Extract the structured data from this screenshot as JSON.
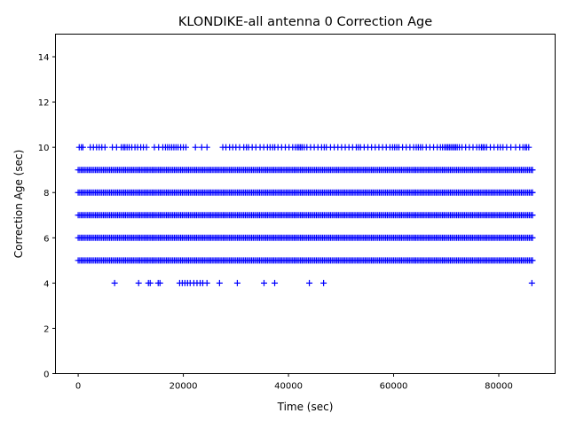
{
  "chart_data": {
    "type": "scatter",
    "title": "KLONDIKE-all antenna 0 Correction Age",
    "xlabel": "Time (sec)",
    "ylabel": "Correction Age (sec)",
    "xlim": [
      -4320,
      90720
    ],
    "ylim": [
      0,
      15
    ],
    "xticks": [
      0,
      20000,
      40000,
      60000,
      80000
    ],
    "xtick_labels": [
      "0",
      "20000",
      "40000",
      "60000",
      "80000"
    ],
    "yticks": [
      0,
      2,
      4,
      6,
      8,
      10,
      12,
      14
    ],
    "ytick_labels": [
      "0",
      "2",
      "4",
      "6",
      "8",
      "10",
      "12",
      "14"
    ],
    "grid": false,
    "marker": "+",
    "color": "#0000ff",
    "dense_bands": [
      {
        "y": 5,
        "x_range": [
          0,
          86400
        ]
      },
      {
        "y": 6,
        "x_range": [
          0,
          86400
        ]
      },
      {
        "y": 7,
        "x_range": [
          0,
          86400
        ]
      },
      {
        "y": 8,
        "x_range": [
          0,
          86400
        ]
      },
      {
        "y": 9,
        "x_range": [
          0,
          86400
        ]
      }
    ],
    "sparse_points": [
      {
        "y": 4,
        "x": [
          6934,
          11500,
          13360,
          13700,
          15220,
          15560,
          19300,
          19800,
          20300,
          20800,
          21300,
          22000,
          22600,
          23200,
          23700,
          24500,
          26890,
          30270,
          35350,
          37380,
          43970,
          46680,
          86300
        ]
      },
      {
        "y": 10,
        "x": [
          200,
          600,
          900,
          2300,
          2900,
          3500,
          4000,
          4500,
          5100,
          6500,
          7300,
          8200,
          8600,
          8900,
          9300,
          9700,
          10200,
          10800,
          11300,
          11900,
          12400,
          13000,
          14500,
          15300,
          16100,
          16600,
          17000,
          17400,
          17800,
          18200,
          18600,
          19000,
          19500,
          20000,
          20500,
          22300,
          23500,
          24500,
          27500,
          28100,
          28800,
          29400,
          30000,
          30700,
          31500,
          32000,
          32400,
          33100,
          33800,
          34600,
          35300,
          36000,
          36500,
          37000,
          37400,
          38000,
          38700,
          39400,
          40100,
          40800,
          41300,
          41700,
          42000,
          42300,
          42600,
          43000,
          43500,
          44200,
          44900,
          45600,
          46300,
          46800,
          47200,
          48000,
          48700,
          49400,
          50100,
          50800,
          51500,
          52200,
          52900,
          53300,
          53700,
          54400,
          55100,
          55800,
          56500,
          57200,
          57900,
          58600,
          59300,
          59800,
          60200,
          60600,
          61000,
          61700,
          62400,
          63100,
          63800,
          64300,
          64700,
          65100,
          65500,
          66200,
          66900,
          67600,
          68300,
          68900,
          69300,
          69700,
          70000,
          70300,
          70600,
          70900,
          71200,
          71500,
          71800,
          72100,
          72500,
          73000,
          73700,
          74400,
          75100,
          75800,
          76300,
          76700,
          77000,
          77300,
          77700,
          78400,
          79100,
          79800,
          80300,
          80800,
          81500,
          82300,
          83200,
          84000,
          84600,
          85000,
          85300,
          85700
        ]
      }
    ]
  }
}
